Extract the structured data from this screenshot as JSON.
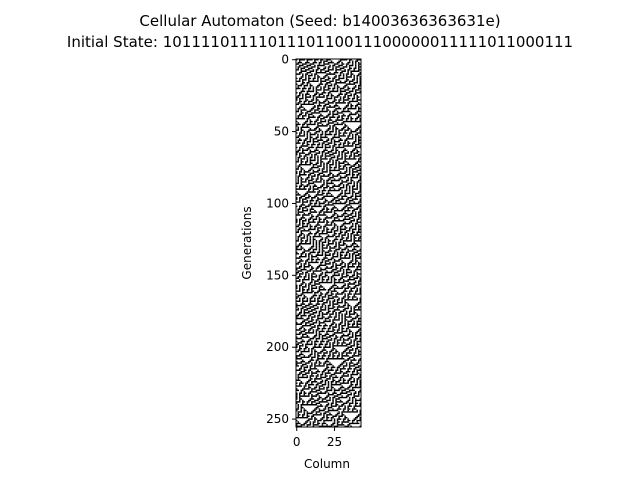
{
  "chart_data": {
    "type": "heatmap",
    "title": "Cellular Automaton (Seed: b14003636363631e)",
    "subtitle": "Initial State: 1011110111101110110011100000011111011000111",
    "xlabel": "Column",
    "ylabel": "Generations",
    "initial_state": "1011110111101110110011100000011111011000111",
    "columns": 43,
    "generations": 256,
    "xlim": [
      -0.5,
      42.5
    ],
    "ylim": [
      255.5,
      -0.5
    ],
    "x_ticks": [
      0,
      25
    ],
    "y_ticks": [
      0,
      50,
      100,
      150,
      200,
      250
    ],
    "colors": {
      "on": "#000000",
      "off": "#ffffff",
      "frame": "#000000"
    },
    "grid": false
  }
}
